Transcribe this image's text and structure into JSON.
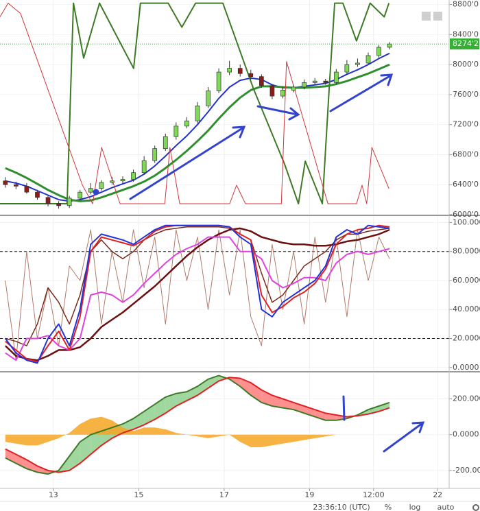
{
  "chart_data": [
    {
      "type": "candlestick",
      "x": [
        11.875,
        12.125,
        12.375,
        12.625,
        12.875,
        13.125,
        13.375,
        13.625,
        13.875,
        14.125,
        14.375,
        14.625,
        14.875,
        15.125,
        15.375,
        15.625,
        15.875,
        16.125,
        16.375,
        16.625,
        16.875,
        17.125,
        17.375,
        17.625,
        17.875,
        18.125,
        18.375,
        18.625,
        18.875,
        19.125,
        19.375,
        19.625,
        19.875,
        20.125,
        20.375,
        20.625,
        20.875
      ],
      "open": [
        6450,
        6400,
        6380,
        6300,
        6230,
        6150,
        6120,
        6220,
        6300,
        6350,
        6430,
        6450,
        6470,
        6560,
        6720,
        6880,
        7040,
        7180,
        7250,
        7450,
        7650,
        7900,
        7950,
        7880,
        7840,
        7720,
        7580,
        7660,
        7700,
        7760,
        7780,
        7760,
        7900,
        8000,
        8020,
        8120,
        8230
      ],
      "high": [
        6500,
        6440,
        6420,
        6330,
        6260,
        6180,
        6250,
        6330,
        6420,
        6460,
        6500,
        6510,
        6600,
        6780,
        6920,
        7080,
        7230,
        7300,
        7500,
        7700,
        7950,
        8050,
        8000,
        7930,
        7870,
        7740,
        7700,
        7730,
        7800,
        7820,
        7810,
        7940,
        8060,
        8080,
        8160,
        8260,
        8300
      ],
      "low": [
        6360,
        6340,
        6280,
        6200,
        6110,
        6080,
        6090,
        6190,
        6270,
        6320,
        6400,
        6420,
        6440,
        6530,
        6690,
        6850,
        7000,
        7150,
        7220,
        7420,
        7620,
        7860,
        7840,
        7800,
        7690,
        7540,
        7550,
        7630,
        7670,
        7730,
        7730,
        7740,
        7870,
        7970,
        8000,
        8090,
        8200
      ],
      "close": [
        6400,
        6380,
        6300,
        6230,
        6150,
        6120,
        6220,
        6300,
        6350,
        6430,
        6450,
        6470,
        6560,
        6720,
        6880,
        7040,
        7180,
        7250,
        7450,
        7650,
        7900,
        7950,
        7880,
        7840,
        7720,
        7580,
        7660,
        7700,
        7760,
        7780,
        7760,
        7900,
        8000,
        8020,
        8120,
        8230,
        8274.2
      ],
      "up_color": "#7ed957",
      "down_color": "#8b1c1c",
      "series": [
        {
          "color": "#2233cc",
          "width": 2,
          "values": [
            6450,
            6420,
            6380,
            6320,
            6260,
            6200,
            6180,
            6200,
            6240,
            6300,
            6360,
            6410,
            6460,
            6540,
            6650,
            6780,
            6920,
            7050,
            7200,
            7370,
            7550,
            7700,
            7790,
            7820,
            7800,
            7730,
            7690,
            7690,
            7710,
            7730,
            7750,
            7800,
            7870,
            7930,
            8000,
            8080,
            8150
          ]
        },
        {
          "color": "#2f8f2f",
          "width": 3,
          "values": [
            6620,
            6560,
            6490,
            6410,
            6330,
            6260,
            6200,
            6180,
            6190,
            6230,
            6280,
            6330,
            6380,
            6440,
            6520,
            6620,
            6730,
            6850,
            6980,
            7120,
            7280,
            7430,
            7560,
            7660,
            7710,
            7710,
            7700,
            7690,
            7690,
            7700,
            7710,
            7740,
            7780,
            7830,
            7880,
            7940,
            8000
          ]
        },
        {
          "color": "#3d7a26",
          "width": 2,
          "x": [
            11.75,
            13.32,
            13.47,
            13.71,
            14.08,
            14.88,
            15.04,
            15.69,
            16.01,
            16.33,
            16.97,
            17.69,
            18.42,
            18.74,
            18.9,
            19.3,
            19.46,
            19.59,
            19.78,
            20.1,
            20.42,
            20.75,
            20.86
          ],
          "values": [
            6146,
            6146,
            8818,
            8086,
            8818,
            7949,
            8818,
            8818,
            8498,
            8818,
            8818,
            7674,
            6667,
            6146,
            6713,
            6146,
            7674,
            8818,
            8818,
            8315,
            8818,
            8635,
            8818
          ]
        },
        {
          "color": "#d0353a",
          "width": 1,
          "x": [
            11.75,
            11.94,
            12.23,
            13.68,
            13.92,
            14.13,
            14.56,
            15.61,
            15.73,
            15.96,
            17.13,
            17.29,
            17.5,
            18.34,
            18.46,
            19.43,
            20.1,
            20.23,
            20.34,
            20.46,
            20.86
          ],
          "values": [
            8635,
            8818,
            8681,
            6393,
            6146,
            6896,
            6146,
            6146,
            6896,
            6146,
            6146,
            6393,
            6146,
            6146,
            8040,
            6146,
            6146,
            6393,
            6146,
            6896,
            6347
          ]
        }
      ],
      "price_label": {
        "value": 8274.2,
        "label": "8274'2"
      },
      "xlim": [
        11.75,
        22.27
      ],
      "ylim": [
        6000,
        8860
      ],
      "yticks": [
        {
          "value": 6000,
          "label": "6000'0"
        },
        {
          "value": 6400,
          "label": "6400'0"
        },
        {
          "value": 6800,
          "label": "6800'0"
        },
        {
          "value": 7200,
          "label": "7200'0"
        },
        {
          "value": 7600,
          "label": "7600'0"
        },
        {
          "value": 8000,
          "label": "8000'0"
        },
        {
          "value": 8400,
          "label": "8400'0"
        },
        {
          "value": 8800,
          "label": "8800'0"
        }
      ]
    },
    {
      "type": "line",
      "x": [
        11.875,
        12.125,
        12.375,
        12.625,
        12.875,
        13.125,
        13.375,
        13.625,
        13.875,
        14.125,
        14.375,
        14.625,
        14.875,
        15.125,
        15.375,
        15.625,
        15.875,
        16.125,
        16.375,
        16.625,
        16.875,
        17.125,
        17.375,
        17.625,
        17.875,
        18.125,
        18.375,
        18.625,
        18.875,
        19.125,
        19.375,
        19.625,
        19.875,
        20.125,
        20.375,
        20.625,
        20.875
      ],
      "series": [
        {
          "color": "#b07a6a",
          "width": 1,
          "values": [
            60,
            5,
            80,
            20,
            55,
            15,
            70,
            60,
            95,
            30,
            80,
            45,
            95,
            55,
            90,
            30,
            95,
            60,
            90,
            40,
            95,
            50,
            95,
            35,
            15,
            85,
            40,
            80,
            30,
            90,
            45,
            90,
            35,
            95,
            60,
            90,
            75
          ]
        },
        {
          "color": "#7a2a1a",
          "width": 1.5,
          "values": [
            20,
            18,
            15,
            30,
            55,
            45,
            30,
            50,
            80,
            88,
            80,
            75,
            80,
            88,
            92,
            95,
            96,
            97,
            97,
            97,
            97,
            96,
            92,
            88,
            65,
            45,
            50,
            60,
            70,
            75,
            80,
            88,
            92,
            92,
            94,
            95,
            96
          ]
        },
        {
          "color": "#6b0f0f",
          "width": 2.5,
          "values": [
            15,
            8,
            6,
            5,
            8,
            12,
            12,
            14,
            20,
            28,
            33,
            38,
            44,
            50,
            56,
            63,
            70,
            77,
            83,
            88,
            92,
            95,
            96,
            94,
            90,
            88,
            86,
            85,
            85,
            84,
            84,
            85,
            87,
            88,
            90,
            92,
            95
          ]
        },
        {
          "color": "#e040e0",
          "width": 2,
          "values": [
            10,
            5,
            20,
            20,
            22,
            15,
            12,
            20,
            50,
            52,
            50,
            45,
            50,
            58,
            65,
            72,
            78,
            82,
            85,
            90,
            90,
            90,
            80,
            80,
            75,
            60,
            55,
            58,
            62,
            62,
            60,
            72,
            78,
            80,
            78,
            80,
            82
          ]
        },
        {
          "color": "#e02020",
          "width": 2,
          "values": [
            18,
            12,
            6,
            4,
            15,
            25,
            12,
            35,
            80,
            90,
            88,
            86,
            84,
            88,
            94,
            97,
            98,
            98,
            98,
            98,
            98,
            97,
            92,
            88,
            50,
            38,
            42,
            48,
            52,
            58,
            68,
            85,
            92,
            95,
            96,
            98,
            97
          ]
        },
        {
          "color": "#2233dd",
          "width": 2,
          "values": [
            20,
            10,
            5,
            3,
            20,
            30,
            15,
            40,
            85,
            92,
            90,
            88,
            85,
            90,
            95,
            98,
            98,
            98,
            98,
            98,
            98,
            97,
            90,
            85,
            40,
            35,
            45,
            50,
            55,
            60,
            70,
            90,
            95,
            92,
            98,
            97,
            96
          ]
        }
      ],
      "levels": [
        80,
        20
      ],
      "xlim": [
        11.75,
        22.27
      ],
      "ylim": [
        -2,
        104
      ],
      "yticks": [
        {
          "value": 0,
          "label": "0.0000"
        },
        {
          "value": 20,
          "label": "20.0000"
        },
        {
          "value": 40,
          "label": "40.0000"
        },
        {
          "value": 60,
          "label": "60.0000"
        },
        {
          "value": 80,
          "label": "80.0000"
        },
        {
          "value": 100,
          "label": "100.0000"
        }
      ]
    },
    {
      "type": "line",
      "x": [
        11.875,
        12.125,
        12.375,
        12.625,
        12.875,
        13.125,
        13.375,
        13.625,
        13.875,
        14.125,
        14.375,
        14.625,
        14.875,
        15.125,
        15.375,
        15.625,
        15.875,
        16.125,
        16.375,
        16.625,
        16.875,
        17.125,
        17.375,
        17.625,
        17.875,
        18.125,
        18.375,
        18.625,
        18.875,
        19.125,
        19.375,
        19.625,
        19.875,
        20.125,
        20.375,
        20.625,
        20.875
      ],
      "series": [
        {
          "color": "#f5a623",
          "style": "area",
          "values": [
            -40,
            -50,
            -60,
            -60,
            -40,
            -20,
            10,
            60,
            90,
            100,
            80,
            40,
            20,
            40,
            40,
            30,
            10,
            0,
            -10,
            -20,
            -10,
            0,
            -40,
            -70,
            -70,
            -60,
            -50,
            -40,
            -30,
            -20,
            -10,
            0,
            0,
            0,
            0,
            0,
            0
          ]
        },
        {
          "color": "#3d7a26",
          "width": 2,
          "values": [
            -130,
            -160,
            -190,
            -210,
            -220,
            -200,
            -120,
            -40,
            0,
            20,
            40,
            60,
            90,
            130,
            170,
            210,
            230,
            240,
            270,
            310,
            330,
            310,
            270,
            220,
            180,
            160,
            150,
            140,
            120,
            100,
            80,
            80,
            90,
            110,
            140,
            160,
            180
          ]
        },
        {
          "color": "#e02020",
          "width": 2,
          "values": [
            -80,
            -110,
            -140,
            -175,
            -200,
            -210,
            -200,
            -160,
            -110,
            -60,
            -20,
            10,
            30,
            55,
            85,
            120,
            160,
            190,
            220,
            260,
            300,
            320,
            315,
            290,
            250,
            220,
            200,
            180,
            160,
            140,
            120,
            110,
            100,
            105,
            115,
            130,
            150
          ]
        }
      ],
      "fill_between": [
        1,
        2
      ],
      "fill_up_color": "#7fc97f",
      "fill_down_color": "#ff6b6b",
      "xlim": [
        11.75,
        22.27
      ],
      "ylim": [
        -300,
        340
      ],
      "yticks": [
        {
          "value": -200,
          "label": "-200.0000"
        },
        {
          "value": 0,
          "label": "0.0000"
        },
        {
          "value": 200,
          "label": "200.0000"
        }
      ],
      "xticks": [
        13,
        15,
        17,
        19,
        {
          "value": 20.5,
          "label": "12:00"
        },
        22
      ]
    }
  ],
  "toolbar": {
    "time": "23:36:10 (UTC)",
    "buttons": [
      "%",
      "log",
      "auto"
    ]
  }
}
